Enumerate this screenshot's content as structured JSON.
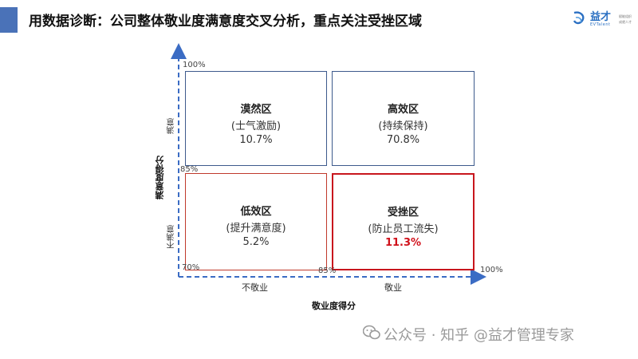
{
  "header": {
    "title": "用数据诊断：公司整体敬业度满意度交叉分析，重点关注受挫区域",
    "accent_color": "#4a72b8"
  },
  "logo": {
    "text": "益才",
    "sub": "EVTalent",
    "tag1": "赋能组织",
    "tag2": "成就人才"
  },
  "quadrants": {
    "idle": {
      "name": "漠然区",
      "desc": "(士气激励)",
      "value": "10.7%",
      "border_color": "#3d5a8c"
    },
    "high": {
      "name": "高效区",
      "desc": "(持续保持)",
      "value": "70.8%",
      "border_color": "#3d5a8c"
    },
    "low": {
      "name": "低效区",
      "desc": "(提升满意度)",
      "value": "5.2%",
      "border_color": "#c0392b"
    },
    "frustrated": {
      "name": "受挫区",
      "desc": "(防止员工流失)",
      "value": "11.3%",
      "border_color": "#c8161d",
      "value_color": "#d0101a"
    }
  },
  "axes": {
    "y_title": "满意度得分",
    "x_title": "敬业度得分",
    "y_top_label": "满意",
    "y_bottom_label": "不满意",
    "x_left_label": "不敬业",
    "x_right_label": "敬业",
    "y_ticks": [
      "100%",
      "85%",
      "70%"
    ],
    "x_ticks": [
      "85%",
      "100%"
    ],
    "axis_color": "#3b6cc4"
  },
  "watermark": {
    "text": "公众号 · 知乎 @益才管理专家"
  }
}
